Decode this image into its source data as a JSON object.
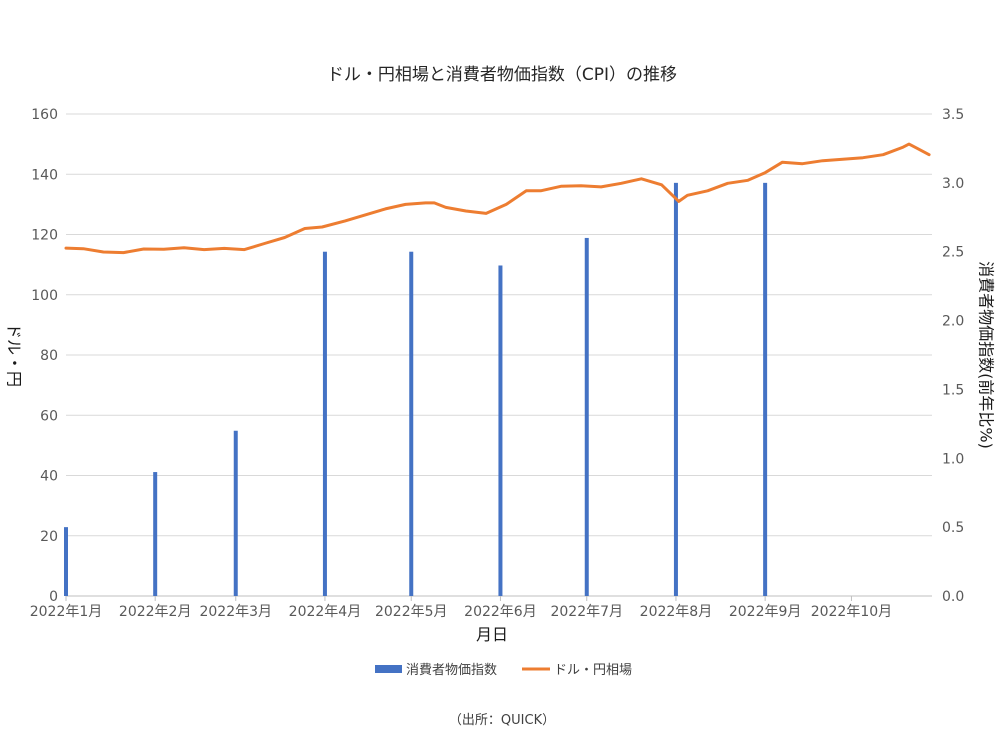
{
  "chart_data": {
    "type": "bar+line",
    "title": "ドル・円相場と消費者物価指数（CPI）の推移",
    "xlabel": "月日",
    "ylabel_left": "ドル・円",
    "ylabel_right": "消費者物価指数(前年比%)",
    "ylim_left": [
      0,
      160
    ],
    "ylim_right": [
      0,
      3.5
    ],
    "yticks_left": [
      "0",
      "20",
      "40",
      "60",
      "80",
      "100",
      "120",
      "140",
      "160"
    ],
    "yticks_right": [
      "0.0",
      "0.5",
      "1.0",
      "1.5",
      "2.0",
      "2.5",
      "3.0",
      "3.5"
    ],
    "x_tick_labels": [
      "2022年1月",
      "2022年2月",
      "2022年3月",
      "2022年4月",
      "2022年5月",
      "2022年6月",
      "2022年7月",
      "2022年8月",
      "2022年9月",
      "2022年10月"
    ],
    "grid": true,
    "legend_position": "bottom",
    "source_note": "（出所：QUICK）",
    "colors": {
      "cpi": "#4472c4",
      "usdjpy": "#ed7d31"
    },
    "series": [
      {
        "name": "消費者物価指数",
        "type": "bar",
        "axis": "right",
        "x": [
          "2022-01-01",
          "2022-02-01",
          "2022-03-01",
          "2022-04-01",
          "2022-05-01",
          "2022-06-01",
          "2022-07-01",
          "2022-08-01",
          "2022-09-01"
        ],
        "values": [
          0.5,
          0.9,
          1.2,
          2.5,
          2.5,
          2.4,
          2.6,
          3.0,
          3.0
        ]
      },
      {
        "name": "ドル・円相場",
        "type": "line",
        "axis": "left",
        "x": [
          "2022-01-01",
          "2022-01-07",
          "2022-01-14",
          "2022-01-21",
          "2022-01-28",
          "2022-02-04",
          "2022-02-11",
          "2022-02-18",
          "2022-02-25",
          "2022-03-04",
          "2022-03-11",
          "2022-03-18",
          "2022-03-25",
          "2022-03-31",
          "2022-04-08",
          "2022-04-15",
          "2022-04-22",
          "2022-04-29",
          "2022-05-06",
          "2022-05-09",
          "2022-05-13",
          "2022-05-20",
          "2022-05-27",
          "2022-06-03",
          "2022-06-10",
          "2022-06-15",
          "2022-06-22",
          "2022-06-29",
          "2022-07-06",
          "2022-07-13",
          "2022-07-20",
          "2022-07-27",
          "2022-08-02",
          "2022-08-05",
          "2022-08-12",
          "2022-08-19",
          "2022-08-26",
          "2022-09-01",
          "2022-09-07",
          "2022-09-14",
          "2022-09-21",
          "2022-09-28",
          "2022-10-05",
          "2022-10-12",
          "2022-10-19",
          "2022-10-21",
          "2022-10-24",
          "2022-10-28"
        ],
        "values": [
          115.5,
          115.3,
          114.2,
          114.0,
          115.2,
          115.1,
          115.6,
          115.0,
          115.4,
          115.0,
          117.0,
          119.0,
          122.0,
          122.5,
          124.5,
          126.5,
          128.5,
          130.0,
          130.5,
          130.5,
          129.0,
          127.8,
          127.0,
          130.0,
          134.5,
          134.5,
          136.0,
          136.2,
          135.8,
          137.0,
          138.5,
          136.5,
          131.0,
          133.0,
          134.5,
          137.0,
          138.0,
          140.5,
          144.0,
          143.5,
          144.5,
          145.0,
          145.5,
          146.5,
          149.0,
          150.0,
          148.5,
          146.5
        ]
      }
    ]
  }
}
